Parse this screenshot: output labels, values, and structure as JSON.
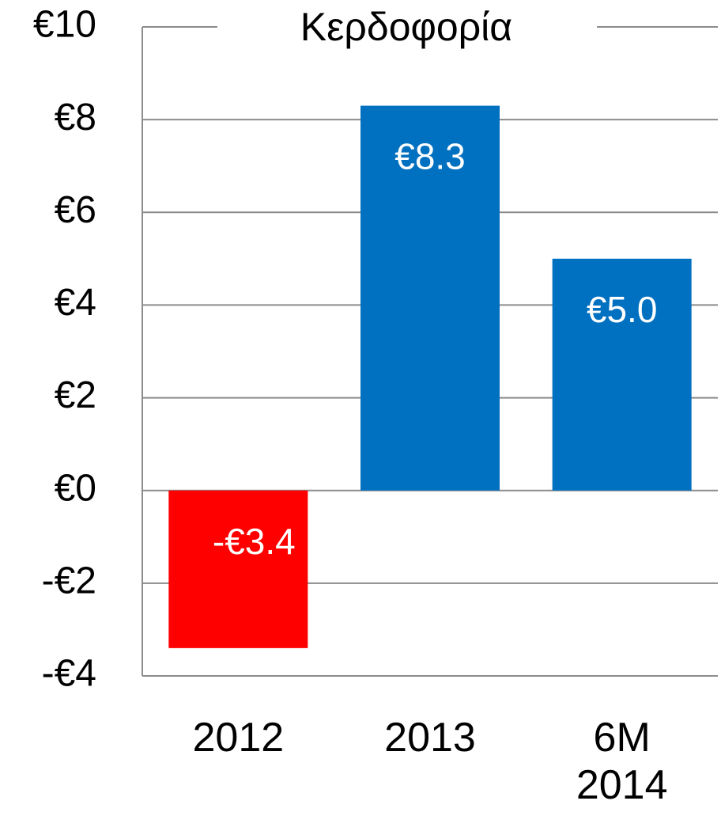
{
  "chart_data": {
    "type": "bar",
    "title": "Κερδοφορία",
    "categories": [
      "2012",
      "2013",
      "6M 2014"
    ],
    "values": [
      -3.4,
      8.3,
      5.0
    ],
    "value_labels": [
      "-€3.4",
      "€8.3",
      "€5.0"
    ],
    "colors": [
      "#ff0000",
      "#0070c0",
      "#0070c0"
    ],
    "ylim": [
      -4,
      10
    ],
    "yticks": [
      {
        "value": -4,
        "label": "-€4"
      },
      {
        "value": -2,
        "label": "-€2"
      },
      {
        "value": 0,
        "label": "€0"
      },
      {
        "value": 2,
        "label": "€2"
      },
      {
        "value": 4,
        "label": "€4"
      },
      {
        "value": 6,
        "label": "€6"
      },
      {
        "value": 8,
        "label": "€8"
      },
      {
        "value": 10,
        "label": "€10"
      }
    ],
    "grid": true
  }
}
